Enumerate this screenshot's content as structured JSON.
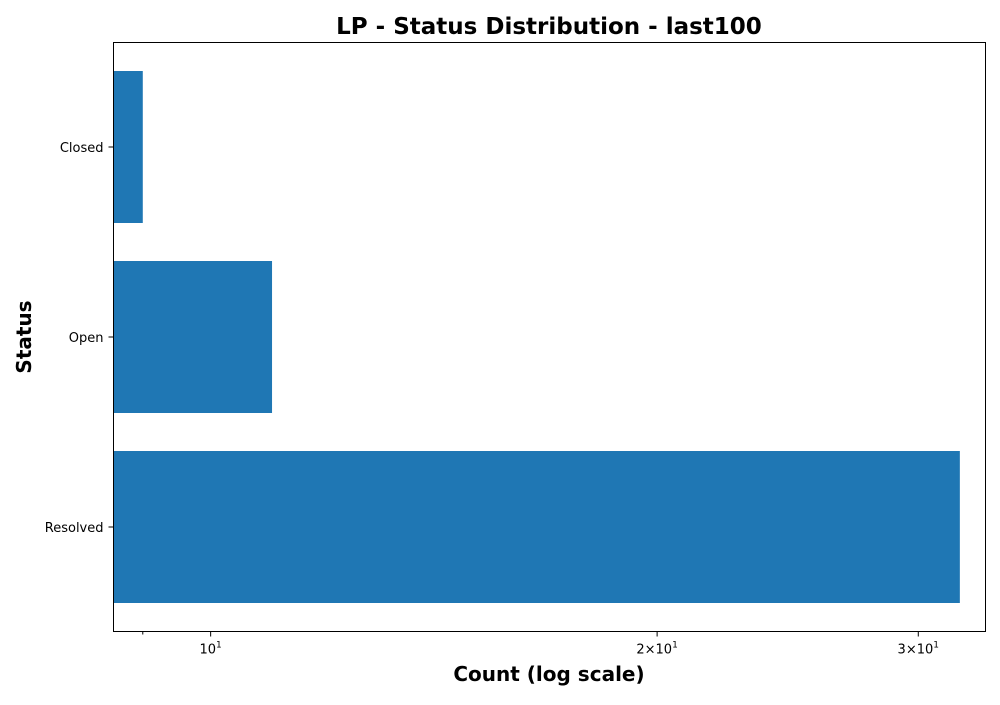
{
  "chart_data": {
    "type": "bar",
    "orientation": "horizontal",
    "title": "LP - Status Distribution - last100",
    "xlabel": "Count (log scale)",
    "ylabel": "Status",
    "x_scale": "log",
    "xlim": [
      8.6,
      33.3
    ],
    "categories": [
      "Closed",
      "Open",
      "Resolved"
    ],
    "values": [
      9,
      11,
      32
    ],
    "x_major_ticks": [
      {
        "value": 10,
        "label": "10^1"
      },
      {
        "value": 20,
        "label": "2×10^1"
      },
      {
        "value": 30,
        "label": "3×10^1"
      }
    ],
    "x_minor_ticks": [
      9
    ],
    "bar_color": "#1f77b4",
    "grid": false,
    "legend": "none"
  }
}
